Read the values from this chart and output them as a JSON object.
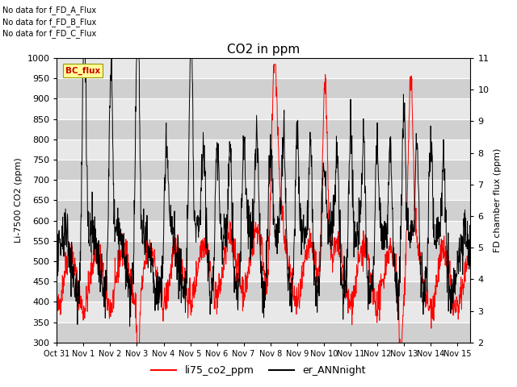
{
  "title": "CO2 in ppm",
  "ylabel_left": "Li-7500 CO2 (ppm)",
  "ylabel_right": "FD chamber flux (ppm)",
  "ylim_left": [
    300,
    1000
  ],
  "ylim_right": [
    2.0,
    11.0
  ],
  "yticks_left": [
    300,
    350,
    400,
    450,
    500,
    550,
    600,
    650,
    700,
    750,
    800,
    850,
    900,
    950,
    1000
  ],
  "yticks_right": [
    2.0,
    3.0,
    4.0,
    5.0,
    6.0,
    7.0,
    8.0,
    9.0,
    10.0,
    11.0
  ],
  "xlabel_ticks": [
    "Oct 31",
    "Nov 1",
    "Nov 2",
    "Nov 3",
    "Nov 4",
    "Nov 5",
    "Nov 6",
    "Nov 7",
    "Nov 8",
    "Nov 9",
    "Nov 10",
    "Nov 11",
    "Nov 12",
    "Nov 13",
    "Nov 14",
    "Nov 15"
  ],
  "legend_entries": [
    "li75_co2_ppm",
    "er_ANNnight"
  ],
  "text_annotations": [
    "No data for f_FD_A_Flux",
    "No data for f_FD_B_Flux",
    "No data for f_FD_C_Flux"
  ],
  "bc_flux_label": "BC_flux",
  "bc_flux_color": "#cc0000",
  "bc_flux_bg": "#ffff99",
  "plot_bg_color": "#e8e8e8",
  "band_color_dark": "#d0d0d0",
  "band_color_light": "#e8e8e8",
  "title_fontsize": 11,
  "axis_fontsize": 8,
  "tick_fontsize": 8,
  "annot_fontsize": 7
}
